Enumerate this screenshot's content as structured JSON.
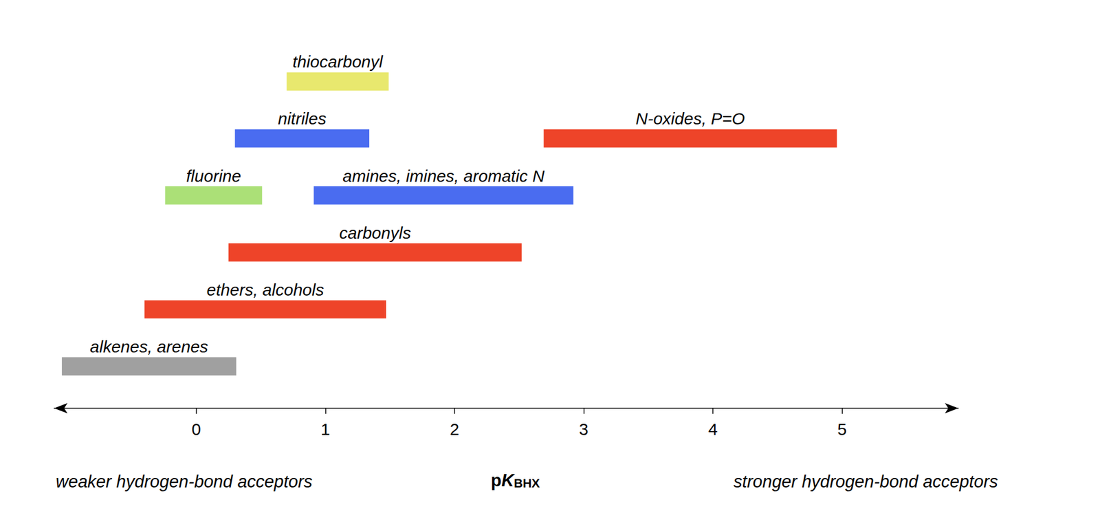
{
  "chart_data": {
    "type": "range_bar",
    "x_label": {
      "base": "pK",
      "subscript": "BHX"
    },
    "left_note": "weaker hydrogen-bond acceptors",
    "right_note": "stronger hydrogen-bond acceptors",
    "xlim": [
      -1.1,
      5.9
    ],
    "xticks": [
      0,
      1,
      2,
      3,
      4,
      5
    ],
    "grid": false,
    "orientation": "horizontal",
    "rows": [
      [
        {
          "label": "thiocarbonyl",
          "low": 0.7,
          "high": 1.49,
          "color": "#e8e86e"
        }
      ],
      [
        {
          "label": "nitriles",
          "low": 0.3,
          "high": 1.34,
          "color": "#4a6cf0"
        },
        {
          "label": "N-oxides, P=O",
          "low": 2.69,
          "high": 4.96,
          "color": "#ee4429"
        }
      ],
      [
        {
          "label": "fluorine",
          "low": -0.24,
          "high": 0.51,
          "color": "#abe077"
        },
        {
          "label": "amines, imines, aromatic N",
          "low": 0.91,
          "high": 2.92,
          "color": "#4a6cf0"
        }
      ],
      [
        {
          "label": "carbonyls",
          "low": 0.25,
          "high": 2.52,
          "color": "#ee4429"
        }
      ],
      [
        {
          "label": "ethers, alcohols",
          "low": -0.4,
          "high": 1.47,
          "color": "#ee4429"
        }
      ],
      [
        {
          "label": "alkenes, arenes",
          "low": -1.04,
          "high": 0.31,
          "color": "#a0a0a0"
        }
      ]
    ]
  }
}
